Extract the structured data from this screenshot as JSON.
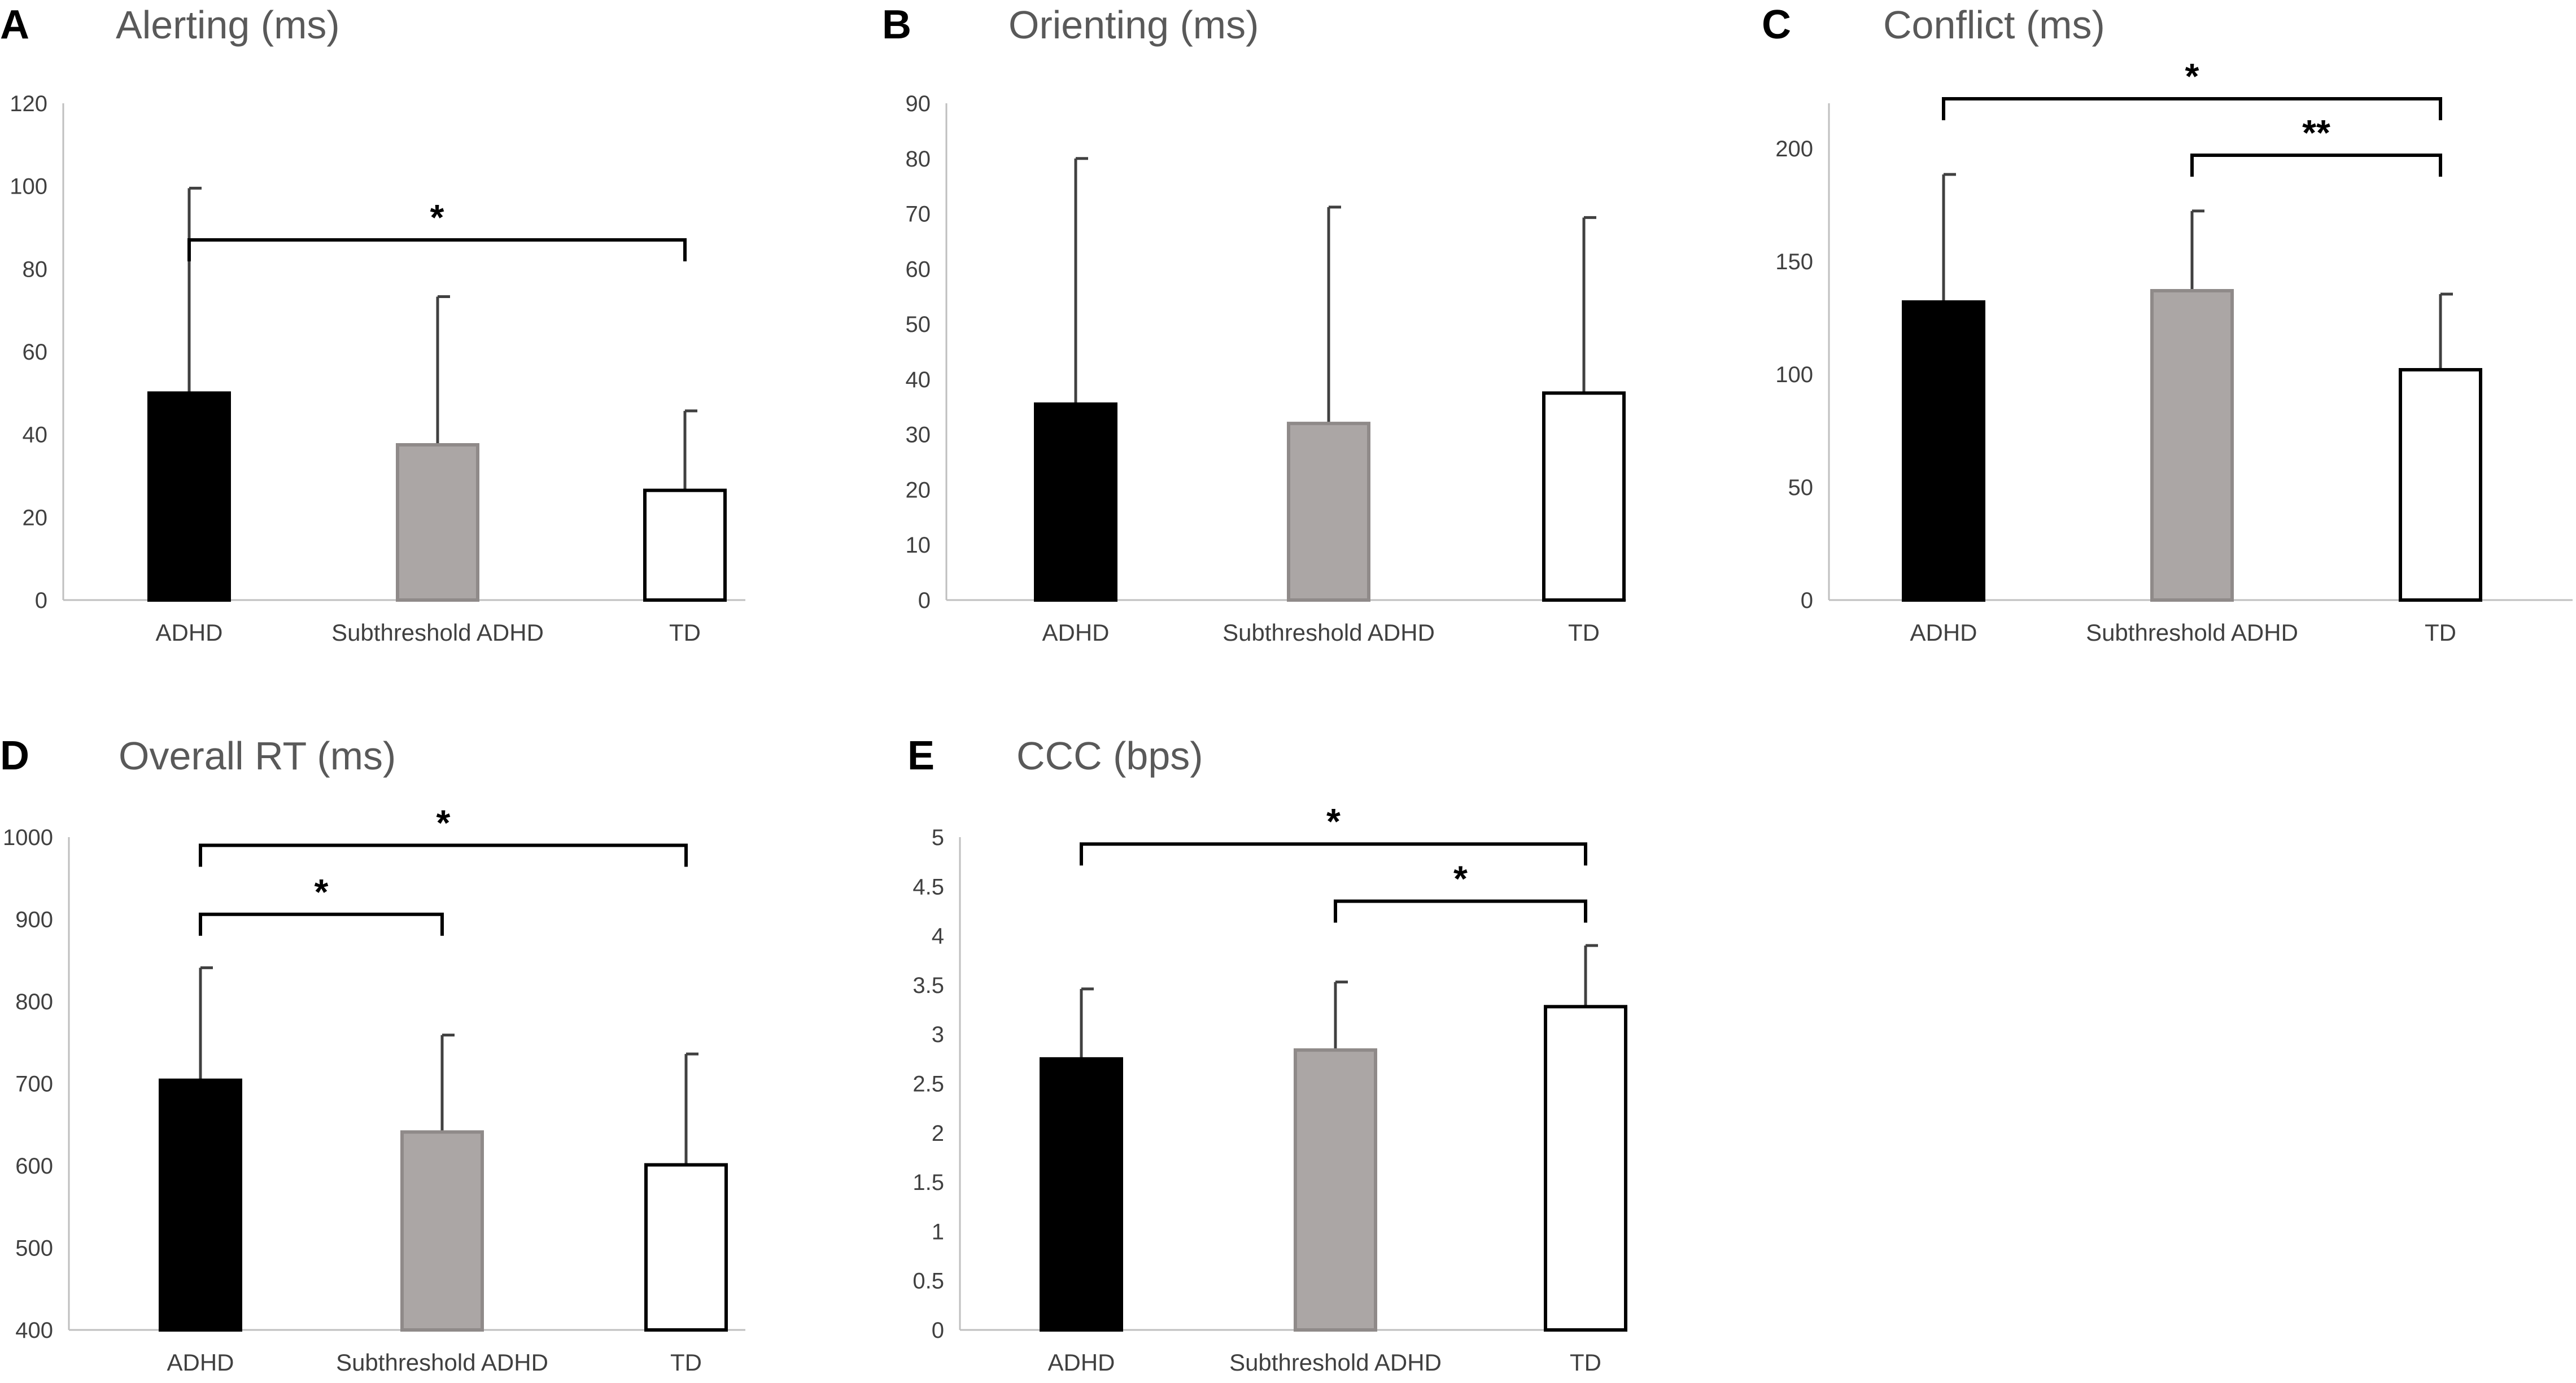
{
  "colors": {
    "ADHD": "#000000",
    "Subthreshold ADHD": "#aba6a5",
    "TD": "#ffffff",
    "bar_stroke": "#4a4a4a",
    "axis": "#bfbfbf",
    "error": "#404040",
    "bracket": "#000000"
  },
  "chart_data": [
    {
      "panel": "A",
      "type": "bar",
      "title": "Alerting (ms)",
      "categories": [
        "ADHD",
        "Subthreshold ADHD",
        "TD"
      ],
      "values": [
        50,
        37.5,
        26.5
      ],
      "errors": [
        49.5,
        35.8,
        19.2
      ],
      "ylim": [
        0,
        120
      ],
      "yticks": [
        0,
        20,
        40,
        60,
        80,
        100,
        120
      ],
      "significance": [
        {
          "from": 0,
          "to": 2,
          "label": "*",
          "level": 87
        }
      ]
    },
    {
      "panel": "B",
      "type": "bar",
      "title": "Orienting (ms)",
      "categories": [
        "ADHD",
        "Subthreshold ADHD",
        "TD"
      ],
      "values": [
        35.5,
        32,
        37.5
      ],
      "errors": [
        44.5,
        39.2,
        31.8
      ],
      "ylim": [
        0,
        90
      ],
      "yticks": [
        0,
        10,
        20,
        30,
        40,
        50,
        60,
        70,
        80,
        90
      ],
      "significance": []
    },
    {
      "panel": "C",
      "type": "bar",
      "title": "Conflict (ms)",
      "categories": [
        "ADHD",
        "Subthreshold ADHD",
        "TD"
      ],
      "values": [
        132,
        137,
        102
      ],
      "errors": [
        56.5,
        35.3,
        33.5
      ],
      "ylim": [
        0,
        220
      ],
      "yticks": [
        0,
        50,
        100,
        150,
        200
      ],
      "significance": [
        {
          "from": 0,
          "to": 2,
          "label": "*",
          "level": 222
        },
        {
          "from": 1,
          "to": 2,
          "label": "**",
          "level": 197
        }
      ]
    },
    {
      "panel": "D",
      "type": "bar",
      "title": "Overall RT (ms)",
      "categories": [
        "ADHD",
        "Subthreshold ADHD",
        "TD"
      ],
      "values": [
        704,
        641,
        601
      ],
      "errors": [
        137,
        118,
        135
      ],
      "ylim": [
        400,
        1000
      ],
      "yticks": [
        400,
        500,
        600,
        700,
        800,
        900,
        1000
      ],
      "significance": [
        {
          "from": 0,
          "to": 2,
          "label": "*",
          "level": 990
        },
        {
          "from": 0,
          "to": 1,
          "label": "*",
          "level": 906
        }
      ]
    },
    {
      "panel": "E",
      "type": "bar",
      "title": "CCC (bps)",
      "categories": [
        "ADHD",
        "Subthreshold ADHD",
        "TD"
      ],
      "values": [
        2.75,
        2.84,
        3.28
      ],
      "errors": [
        0.71,
        0.69,
        0.62
      ],
      "ylim": [
        0,
        5
      ],
      "yticks": [
        "0",
        "0.5",
        "1",
        "1.5",
        "2",
        "2.5",
        "3",
        "3.5",
        "4",
        "4.5",
        "5"
      ],
      "significance": [
        {
          "from": 0,
          "to": 2,
          "label": "*",
          "level": 4.93
        },
        {
          "from": 1,
          "to": 2,
          "label": "*",
          "level": 4.35
        }
      ]
    }
  ]
}
